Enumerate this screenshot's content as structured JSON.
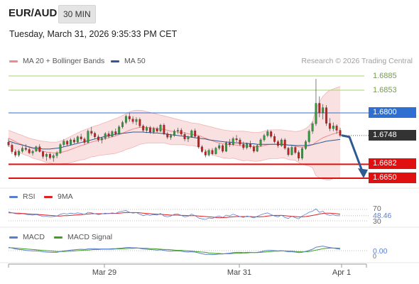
{
  "header": {
    "pair": "EUR/AUD",
    "timeframe": "30 MIN",
    "timestamp": "Tuesday, March 31, 2026 9:35:33 PM CET"
  },
  "legends": {
    "price": [
      {
        "label": "MA 20 + Bollinger Bands",
        "color": "#f08a8a"
      },
      {
        "label": "MA 50",
        "color": "#2d5a93"
      }
    ],
    "rsi": [
      {
        "label": "RSI",
        "color": "#5a7fd0"
      },
      {
        "label": "9MA",
        "color": "#e02020"
      }
    ],
    "macd": [
      {
        "label": "MACD",
        "color": "#5a7fd0"
      },
      {
        "label": "MACD Signal",
        "color": "#40a020"
      }
    ]
  },
  "credit": "Research © 2026 Trading Central",
  "levels": [
    {
      "value": "1.6885",
      "kind": "resistance-light",
      "color": "#8cc84b"
    },
    {
      "value": "1.6853",
      "kind": "resistance-light",
      "color": "#8cc84b"
    },
    {
      "value": "1.6800",
      "kind": "pivot",
      "color": "#2e6fd1"
    },
    {
      "value": "1.6748",
      "kind": "last",
      "color": "#333333"
    },
    {
      "value": "1.6682",
      "kind": "support",
      "color": "#e01010"
    },
    {
      "value": "1.6650",
      "kind": "support",
      "color": "#e01010"
    }
  ],
  "rsi_labels": {
    "upper": "70",
    "value": "48.46",
    "lower": "30"
  },
  "macd_labels": {
    "value": "0.00",
    "zero": "0"
  },
  "x_labels": [
    "Mar 29",
    "Mar 31",
    "Apr 1"
  ],
  "chart_data": {
    "type": "candlestick",
    "price_range": [
      1.662,
      1.6905
    ],
    "candles": [
      [
        1.6733,
        1.6741,
        1.6722,
        1.6726
      ],
      [
        1.6726,
        1.6731,
        1.6706,
        1.6711
      ],
      [
        1.6711,
        1.6716,
        1.6698,
        1.6703
      ],
      [
        1.6703,
        1.6716,
        1.6699,
        1.6712
      ],
      [
        1.6712,
        1.6724,
        1.6708,
        1.6719
      ],
      [
        1.6719,
        1.6728,
        1.6712,
        1.6716
      ],
      [
        1.6716,
        1.6721,
        1.6705,
        1.6708
      ],
      [
        1.6708,
        1.6715,
        1.6702,
        1.6712
      ],
      [
        1.6712,
        1.6725,
        1.671,
        1.6722
      ],
      [
        1.6722,
        1.6728,
        1.6709,
        1.6711
      ],
      [
        1.6711,
        1.6713,
        1.6695,
        1.67
      ],
      [
        1.67,
        1.6708,
        1.669,
        1.6705
      ],
      [
        1.6705,
        1.6709,
        1.6693,
        1.6697
      ],
      [
        1.6697,
        1.6706,
        1.6688,
        1.6702
      ],
      [
        1.6702,
        1.6712,
        1.6696,
        1.6708
      ],
      [
        1.6708,
        1.673,
        1.6706,
        1.6727
      ],
      [
        1.6727,
        1.674,
        1.6722,
        1.6735
      ],
      [
        1.6735,
        1.6738,
        1.6724,
        1.6728
      ],
      [
        1.6728,
        1.6742,
        1.6725,
        1.6738
      ],
      [
        1.6738,
        1.6743,
        1.6729,
        1.6733
      ],
      [
        1.6733,
        1.6748,
        1.6731,
        1.6745
      ],
      [
        1.6745,
        1.6752,
        1.6736,
        1.674
      ],
      [
        1.674,
        1.6744,
        1.6727,
        1.6732
      ],
      [
        1.6732,
        1.6762,
        1.673,
        1.6758
      ],
      [
        1.6758,
        1.6768,
        1.6748,
        1.6753
      ],
      [
        1.6753,
        1.6757,
        1.674,
        1.6745
      ],
      [
        1.6745,
        1.675,
        1.6733,
        1.6738
      ],
      [
        1.6738,
        1.6745,
        1.673,
        1.6742
      ],
      [
        1.6742,
        1.6756,
        1.6738,
        1.6752
      ],
      [
        1.6752,
        1.6758,
        1.6742,
        1.6746
      ],
      [
        1.6746,
        1.676,
        1.6744,
        1.6757
      ],
      [
        1.6757,
        1.6764,
        1.6748,
        1.6752
      ],
      [
        1.6752,
        1.6772,
        1.675,
        1.6768
      ],
      [
        1.6768,
        1.6782,
        1.6764,
        1.6778
      ],
      [
        1.6778,
        1.6796,
        1.6774,
        1.6792
      ],
      [
        1.6792,
        1.68,
        1.678,
        1.6786
      ],
      [
        1.6786,
        1.6792,
        1.6775,
        1.678
      ],
      [
        1.678,
        1.679,
        1.6772,
        1.6785
      ],
      [
        1.6785,
        1.6789,
        1.6766,
        1.677
      ],
      [
        1.677,
        1.6774,
        1.6755,
        1.676
      ],
      [
        1.676,
        1.677,
        1.6754,
        1.6766
      ],
      [
        1.6766,
        1.677,
        1.6752,
        1.6756
      ],
      [
        1.6756,
        1.6768,
        1.6752,
        1.6764
      ],
      [
        1.6764,
        1.6768,
        1.6755,
        1.6758
      ],
      [
        1.6758,
        1.6775,
        1.6756,
        1.6772
      ],
      [
        1.6772,
        1.6776,
        1.6749,
        1.6752
      ],
      [
        1.6752,
        1.6757,
        1.674,
        1.6744
      ],
      [
        1.6744,
        1.6752,
        1.6738,
        1.6748
      ],
      [
        1.6748,
        1.6762,
        1.6745,
        1.6758
      ],
      [
        1.6758,
        1.6766,
        1.6752,
        1.676
      ],
      [
        1.676,
        1.6765,
        1.6748,
        1.6751
      ],
      [
        1.6751,
        1.6756,
        1.6735,
        1.674
      ],
      [
        1.674,
        1.6748,
        1.6733,
        1.6745
      ],
      [
        1.6745,
        1.6762,
        1.6743,
        1.6759
      ],
      [
        1.6759,
        1.6764,
        1.6742,
        1.6746
      ],
      [
        1.6746,
        1.6748,
        1.6718,
        1.6722
      ],
      [
        1.6722,
        1.6726,
        1.6708,
        1.6711
      ],
      [
        1.6711,
        1.6716,
        1.6698,
        1.6703
      ],
      [
        1.6703,
        1.6718,
        1.67,
        1.6714
      ],
      [
        1.6714,
        1.6719,
        1.6702,
        1.6706
      ],
      [
        1.6706,
        1.6722,
        1.6704,
        1.6719
      ],
      [
        1.6719,
        1.673,
        1.6715,
        1.6725
      ],
      [
        1.6725,
        1.6728,
        1.6708,
        1.6712
      ],
      [
        1.6712,
        1.6735,
        1.671,
        1.6731
      ],
      [
        1.6731,
        1.674,
        1.6722,
        1.6727
      ],
      [
        1.6727,
        1.6745,
        1.6724,
        1.6741
      ],
      [
        1.6741,
        1.6749,
        1.6733,
        1.6738
      ],
      [
        1.6738,
        1.6743,
        1.6724,
        1.6728
      ],
      [
        1.6728,
        1.6734,
        1.6715,
        1.672
      ],
      [
        1.672,
        1.6732,
        1.6716,
        1.6729
      ],
      [
        1.6729,
        1.6736,
        1.6718,
        1.6722
      ],
      [
        1.6722,
        1.6726,
        1.6708,
        1.6712
      ],
      [
        1.6712,
        1.6728,
        1.671,
        1.6725
      ],
      [
        1.6725,
        1.6742,
        1.6722,
        1.6738
      ],
      [
        1.6738,
        1.6752,
        1.6734,
        1.6748
      ],
      [
        1.6748,
        1.6762,
        1.6744,
        1.6757
      ],
      [
        1.6757,
        1.676,
        1.6742,
        1.6746
      ],
      [
        1.6746,
        1.6752,
        1.673,
        1.6734
      ],
      [
        1.6734,
        1.6738,
        1.672,
        1.6725
      ],
      [
        1.6725,
        1.6742,
        1.6722,
        1.6738
      ],
      [
        1.6738,
        1.6742,
        1.6715,
        1.6719
      ],
      [
        1.6719,
        1.6722,
        1.67,
        1.6704
      ],
      [
        1.6704,
        1.6725,
        1.6702,
        1.6721
      ],
      [
        1.6721,
        1.6725,
        1.6705,
        1.6709
      ],
      [
        1.6709,
        1.6714,
        1.669,
        1.6696
      ],
      [
        1.6696,
        1.6722,
        1.6692,
        1.6718
      ],
      [
        1.6718,
        1.6738,
        1.6715,
        1.6734
      ],
      [
        1.6734,
        1.6762,
        1.673,
        1.6758
      ],
      [
        1.6758,
        1.678,
        1.6752,
        1.6775
      ],
      [
        1.6775,
        1.6878,
        1.677,
        1.6822
      ],
      [
        1.6822,
        1.6838,
        1.679,
        1.68
      ],
      [
        1.68,
        1.682,
        1.6785,
        1.6812
      ],
      [
        1.6812,
        1.6818,
        1.677,
        1.6776
      ],
      [
        1.6776,
        1.6788,
        1.6758,
        1.6764
      ],
      [
        1.6764,
        1.6778,
        1.6758,
        1.677
      ],
      [
        1.677,
        1.6774,
        1.6752,
        1.676
      ],
      [
        1.676,
        1.6766,
        1.6744,
        1.6748
      ]
    ],
    "ma20": [
      1.6742,
      1.6738,
      1.6734,
      1.673,
      1.6727,
      1.6724,
      1.6721,
      1.6718,
      1.6716,
      1.6714,
      1.6712,
      1.671,
      1.6709,
      1.6708,
      1.6708,
      1.6709,
      1.6711,
      1.6713,
      1.6716,
      1.6719,
      1.6722,
      1.6725,
      1.6727,
      1.673,
      1.6733,
      1.6735,
      1.6737,
      1.6739,
      1.6741,
      1.6743,
      1.6745,
      1.6747,
      1.675,
      1.6753,
      1.6757,
      1.676,
      1.6763,
      1.6765,
      1.6767,
      1.6767,
      1.6767,
      1.6766,
      1.6765,
      1.6764,
      1.6763,
      1.6762,
      1.676,
      1.6758,
      1.6757,
      1.6756,
      1.6755,
      1.6754,
      1.6752,
      1.6751,
      1.675,
      1.6748,
      1.6745,
      1.6742,
      1.6739,
      1.6736,
      1.6733,
      1.6731,
      1.6729,
      1.6728,
      1.6727,
      1.6727,
      1.6726,
      1.6725,
      1.6724,
      1.6724,
      1.6723,
      1.6722,
      1.6722,
      1.6723,
      1.6725,
      1.6727,
      1.6728,
      1.6728,
      1.6728,
      1.6729,
      1.6728,
      1.6726,
      1.6725,
      1.6724,
      1.6722,
      1.6721,
      1.6722,
      1.6724,
      1.6727,
      1.6733,
      1.6738,
      1.6743,
      1.6746,
      1.6749,
      1.6752,
      1.6754,
      1.6756
    ],
    "bb_upper": [
      1.676,
      1.6757,
      1.6754,
      1.6751,
      1.6748,
      1.6745,
      1.6742,
      1.674,
      1.6738,
      1.6736,
      1.6735,
      1.6734,
      1.6733,
      1.6733,
      1.6733,
      1.6735,
      1.6738,
      1.6742,
      1.6746,
      1.675,
      1.6754,
      1.6758,
      1.6761,
      1.6764,
      1.6767,
      1.677,
      1.6772,
      1.6775,
      1.6778,
      1.6781,
      1.6784,
      1.6787,
      1.679,
      1.6794,
      1.6798,
      1.6802,
      1.6805,
      1.6806,
      1.6806,
      1.6805,
      1.6803,
      1.6801,
      1.6799,
      1.6797,
      1.6795,
      1.6793,
      1.6791,
      1.6789,
      1.6787,
      1.6785,
      1.6783,
      1.6781,
      1.6779,
      1.6777,
      1.6776,
      1.6775,
      1.6773,
      1.6771,
      1.6769,
      1.6767,
      1.6765,
      1.6763,
      1.6761,
      1.676,
      1.6759,
      1.6758,
      1.6758,
      1.6758,
      1.6758,
      1.6757,
      1.6756,
      1.6755,
      1.6755,
      1.6756,
      1.6758,
      1.676,
      1.6761,
      1.6761,
      1.6761,
      1.6761,
      1.676,
      1.6759,
      1.6758,
      1.6757,
      1.6758,
      1.676,
      1.6764,
      1.677,
      1.678,
      1.681,
      1.6825,
      1.6838,
      1.6846,
      1.6852,
      1.6855,
      1.6858,
      1.686
    ],
    "bb_lower": [
      1.6724,
      1.6719,
      1.6714,
      1.6709,
      1.6706,
      1.6703,
      1.67,
      1.6696,
      1.6694,
      1.6692,
      1.6689,
      1.6686,
      1.6685,
      1.6683,
      1.6683,
      1.6683,
      1.6684,
      1.6684,
      1.6686,
      1.6688,
      1.669,
      1.6692,
      1.6693,
      1.6696,
      1.6699,
      1.67,
      1.6702,
      1.6703,
      1.6704,
      1.6705,
      1.6706,
      1.6707,
      1.671,
      1.6712,
      1.6716,
      1.6718,
      1.6721,
      1.6724,
      1.6728,
      1.6729,
      1.6731,
      1.6731,
      1.6731,
      1.6731,
      1.6731,
      1.6731,
      1.6729,
      1.6727,
      1.6727,
      1.6727,
      1.6727,
      1.6727,
      1.6725,
      1.6725,
      1.6724,
      1.6721,
      1.6717,
      1.6713,
      1.6709,
      1.6705,
      1.6701,
      1.6699,
      1.6697,
      1.6696,
      1.6695,
      1.6696,
      1.6694,
      1.6692,
      1.669,
      1.6691,
      1.669,
      1.6689,
      1.6689,
      1.669,
      1.6692,
      1.6694,
      1.6695,
      1.6695,
      1.6695,
      1.6697,
      1.6696,
      1.6693,
      1.6692,
      1.6691,
      1.6686,
      1.6682,
      1.668,
      1.6678,
      1.6674,
      1.6656,
      1.6651,
      1.6648,
      1.6646,
      1.6646,
      1.6649,
      1.665,
      1.6652
    ],
    "ma50": [
      1.6735,
      1.6733,
      1.673,
      1.6728,
      1.6726,
      1.6724,
      1.6722,
      1.672,
      1.6719,
      1.6718,
      1.6717,
      1.6717,
      1.6717,
      1.6718,
      1.6719,
      1.672,
      1.6722,
      1.6724,
      1.6726,
      1.6728,
      1.673,
      1.6732,
      1.6734,
      1.6736,
      1.6738,
      1.674,
      1.6742,
      1.6744,
      1.6746,
      1.6748,
      1.6749,
      1.6751,
      1.6752,
      1.6753,
      1.6754,
      1.6755,
      1.6756,
      1.6756,
      1.6756,
      1.6756,
      1.6755,
      1.6755,
      1.6754,
      1.6754,
      1.6753,
      1.6752,
      1.6751,
      1.675,
      1.6749,
      1.6748,
      1.6747,
      1.6746,
      1.6745,
      1.6744,
      1.6743,
      1.6742,
      1.6741,
      1.674,
      1.6738,
      1.6737,
      1.6736,
      1.6735,
      1.6734,
      1.6733,
      1.6733,
      1.6732,
      1.6731,
      1.6731,
      1.673,
      1.673,
      1.6729,
      1.6729,
      1.6728,
      1.6728,
      1.6728,
      1.6728,
      1.6728,
      1.6728,
      1.6728,
      1.6727,
      1.6727,
      1.6726,
      1.6726,
      1.6725,
      1.6725,
      1.6725,
      1.6725,
      1.6726,
      1.6727,
      1.6729,
      1.6731,
      1.6733,
      1.6735,
      1.6736,
      1.6737,
      1.6738,
      1.6739
    ],
    "rsi_range": [
      25,
      75
    ],
    "rsi": [
      62,
      58,
      55,
      54,
      55,
      53,
      51,
      50,
      52,
      49,
      45,
      46,
      44,
      45,
      47,
      53,
      56,
      54,
      57,
      55,
      58,
      56,
      52,
      60,
      58,
      55,
      52,
      54,
      57,
      55,
      58,
      56,
      62,
      64,
      66,
      60,
      57,
      59,
      53,
      48,
      52,
      49,
      52,
      50,
      56,
      47,
      44,
      47,
      53,
      54,
      49,
      44,
      46,
      54,
      48,
      40,
      37,
      35,
      40,
      38,
      44,
      47,
      42,
      50,
      47,
      53,
      49,
      45,
      42,
      47,
      44,
      40,
      46,
      51,
      55,
      58,
      52,
      47,
      44,
      50,
      42,
      38,
      46,
      41,
      37,
      47,
      53,
      60,
      64,
      72,
      60,
      64,
      52,
      49,
      51,
      48,
      48
    ],
    "rsi_ma": [
      58,
      58,
      57,
      57,
      56,
      55,
      54,
      53,
      53,
      52,
      51,
      50,
      49,
      48,
      47,
      47,
      48,
      48,
      49,
      50,
      51,
      52,
      53,
      54,
      55,
      55,
      55,
      55,
      55,
      56,
      56,
      56,
      57,
      58,
      59,
      59,
      59,
      59,
      58,
      57,
      56,
      55,
      54,
      53,
      53,
      52,
      51,
      50,
      50,
      50,
      49,
      49,
      48,
      48,
      48,
      47,
      46,
      45,
      44,
      43,
      42,
      41,
      41,
      42,
      43,
      44,
      45,
      45,
      45,
      45,
      45,
      44,
      44,
      44,
      45,
      47,
      48,
      49,
      49,
      49,
      48,
      47,
      46,
      45,
      44,
      44,
      45,
      47,
      49,
      51,
      54,
      56,
      57,
      57,
      56,
      55,
      53
    ],
    "rsi_levels": [
      70,
      30
    ],
    "macd_range": [
      -0.0025,
      0.0025
    ],
    "macd": [
      0.0012,
      0.0009,
      0.0006,
      0.0004,
      0.0003,
      0.0001,
      0.0,
      -0.0001,
      -0.0001,
      -0.0002,
      -0.0004,
      -0.0005,
      -0.0006,
      -0.0006,
      -0.0006,
      -0.0003,
      -0.0001,
      0.0,
      0.0002,
      0.0003,
      0.0004,
      0.0005,
      0.0004,
      0.0006,
      0.0007,
      0.0007,
      0.0006,
      0.0006,
      0.0006,
      0.0006,
      0.0007,
      0.0007,
      0.0008,
      0.0009,
      0.0011,
      0.0011,
      0.001,
      0.001,
      0.0008,
      0.0006,
      0.0005,
      0.0004,
      0.0003,
      0.0002,
      0.0003,
      0.0001,
      -0.0001,
      -0.0002,
      -0.0001,
      -0.0001,
      -0.0002,
      -0.0004,
      -0.0005,
      -0.0004,
      -0.0005,
      -0.0008,
      -0.0011,
      -0.0013,
      -0.0013,
      -0.0014,
      -0.0013,
      -0.0012,
      -0.0012,
      -0.001,
      -0.0009,
      -0.0007,
      -0.0006,
      -0.0006,
      -0.0007,
      -0.0006,
      -0.0006,
      -0.0007,
      -0.0006,
      -0.0004,
      -0.0001,
      0.0001,
      0.0001,
      0.0,
      -0.0001,
      0.0,
      -0.0002,
      -0.0004,
      -0.0004,
      -0.0005,
      -0.0007,
      -0.0006,
      -0.0003,
      0.0001,
      0.0005,
      0.0012,
      0.0014,
      0.0016,
      0.0013,
      0.0011,
      0.0009,
      0.0007,
      0.0005
    ],
    "macd_signal": [
      0.001,
      0.001,
      0.0009,
      0.0008,
      0.0007,
      0.0006,
      0.0005,
      0.0004,
      0.0003,
      0.0002,
      0.0001,
      0.0,
      -0.0001,
      -0.0002,
      -0.0003,
      -0.0003,
      -0.0003,
      -0.0002,
      -0.0002,
      -0.0001,
      0.0,
      0.0001,
      0.0002,
      0.0002,
      0.0003,
      0.0004,
      0.0004,
      0.0005,
      0.0005,
      0.0005,
      0.0005,
      0.0006,
      0.0006,
      0.0007,
      0.0007,
      0.0008,
      0.0008,
      0.0009,
      0.0009,
      0.0008,
      0.0008,
      0.0007,
      0.0007,
      0.0006,
      0.0005,
      0.0004,
      0.0004,
      0.0003,
      0.0002,
      0.0001,
      0.0001,
      0.0,
      -0.0001,
      -0.0002,
      -0.0003,
      -0.0004,
      -0.0005,
      -0.0006,
      -0.0008,
      -0.0009,
      -0.001,
      -0.001,
      -0.0011,
      -0.0011,
      -0.0011,
      -0.001,
      -0.0009,
      -0.0009,
      -0.0008,
      -0.0008,
      -0.0007,
      -0.0007,
      -0.0007,
      -0.0006,
      -0.0005,
      -0.0004,
      -0.0003,
      -0.0002,
      -0.0002,
      -0.0001,
      -0.0001,
      -0.0002,
      -0.0002,
      -0.0003,
      -0.0004,
      -0.0004,
      -0.0004,
      -0.0003,
      -0.0001,
      0.0002,
      0.0004,
      0.0007,
      0.0008,
      0.0009,
      0.0009,
      0.0009,
      0.0008
    ],
    "projection": [
      "1.6748",
      "1.6650"
    ]
  }
}
